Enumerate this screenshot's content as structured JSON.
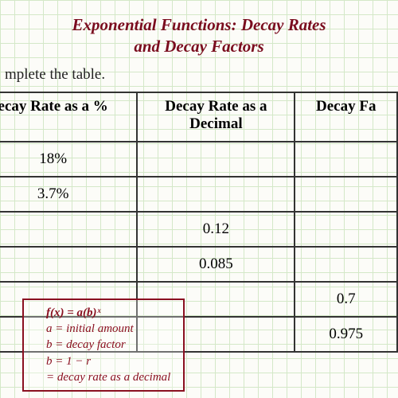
{
  "title_line1": "Exponential Functions:  Decay Rates",
  "title_line2": "and Decay Factors",
  "subtitle": "mplete the table.",
  "headers": {
    "col1": "ecay Rate as a %",
    "col2a": "Decay Rate as a",
    "col2b": "Decimal",
    "col3": "Decay Fa"
  },
  "rows": [
    {
      "pct": "18%",
      "dec": "",
      "fac": ""
    },
    {
      "pct": "3.7%",
      "dec": "",
      "fac": ""
    },
    {
      "pct": "",
      "dec": "0.12",
      "fac": ""
    },
    {
      "pct": "",
      "dec": "0.085",
      "fac": ""
    },
    {
      "pct": "",
      "dec": "",
      "fac": "0.7"
    },
    {
      "pct": "",
      "dec": "",
      "fac": "0.975"
    }
  ],
  "formula": {
    "line1": "f(x) = a(b)ˣ",
    "line2": "a = initial amount",
    "line3": "b = decay factor",
    "line4": "b = 1 − r",
    "line5": "= decay rate as a decimal"
  },
  "colors": {
    "title": "#7a0c1e",
    "formula": "#8a1020",
    "grid": "#d4e8c8",
    "border": "#333333"
  }
}
